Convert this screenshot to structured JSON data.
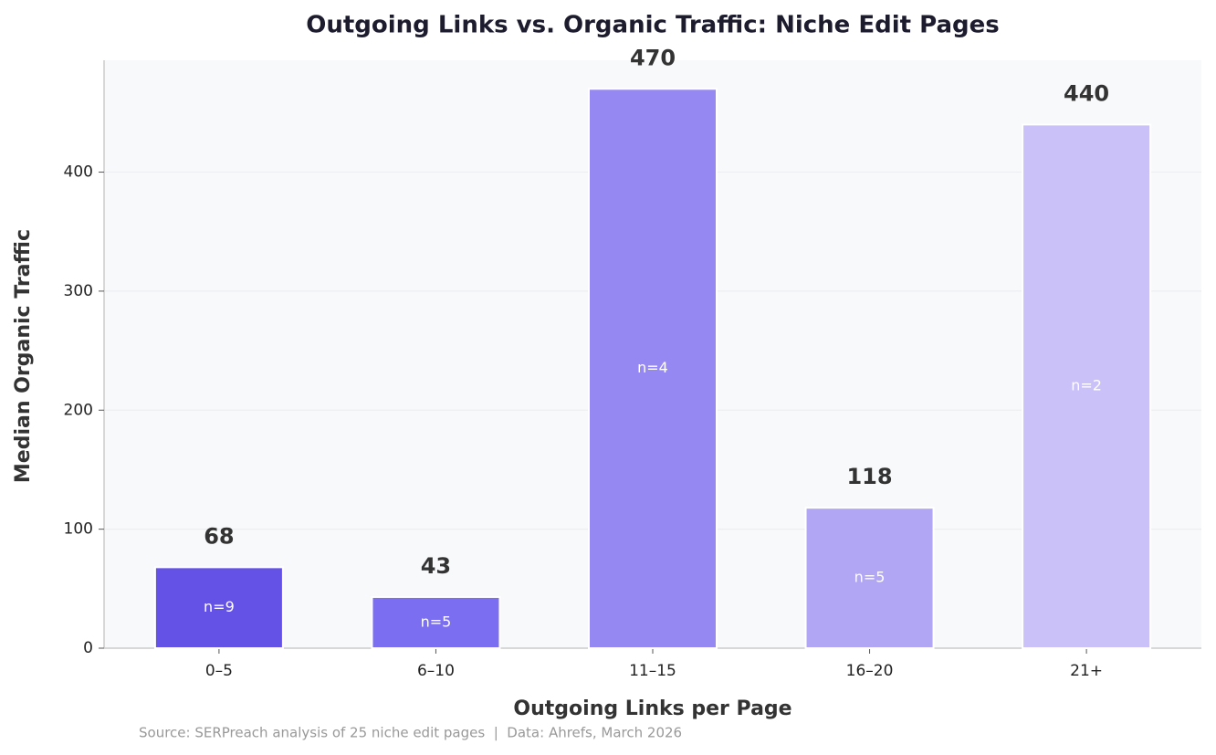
{
  "chart_data": {
    "type": "bar",
    "title": "Outgoing Links vs. Organic Traffic: Niche Edit Pages",
    "x_label": "Outgoing Links per Page",
    "y_label": "Median Organic Traffic",
    "categories": [
      "0–5",
      "6–10",
      "11–15",
      "16–20",
      "21+"
    ],
    "values": [
      68,
      43,
      470,
      118,
      440
    ],
    "colors": [
      "#6352e5",
      "#7b6ef0",
      "#9688f2",
      "#b1a6f4",
      "#c9c1f7"
    ],
    "bar_annotations": [
      "n=9",
      "n=5",
      "n=4",
      "n=5",
      "n=2"
    ],
    "ylim": [
      0,
      494
    ],
    "yticks": [
      0,
      100,
      200,
      300,
      400
    ],
    "grid": true,
    "source": "Source: SERPreach analysis of 25 niche edit pages  |  Data: Ahrefs, March 2026"
  }
}
